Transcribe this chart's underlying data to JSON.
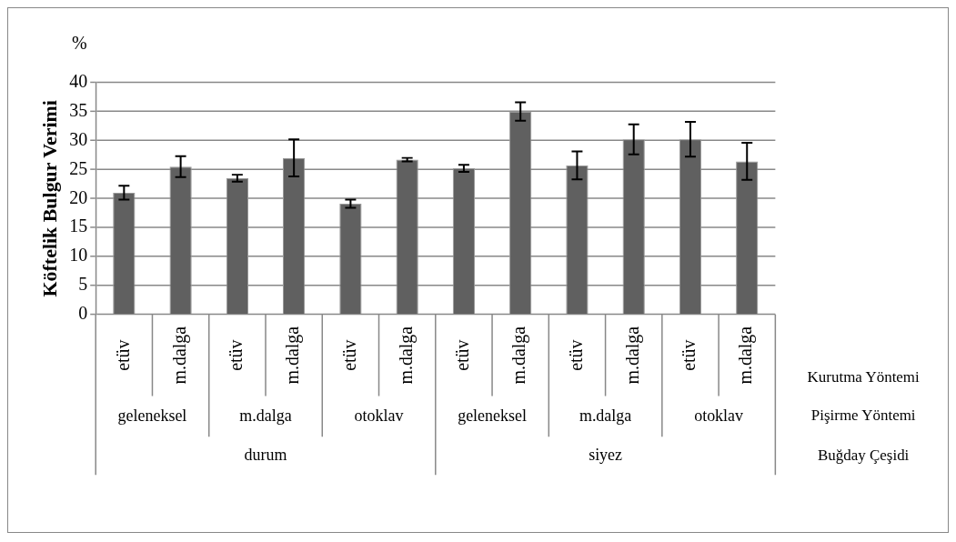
{
  "chart_data": {
    "type": "bar",
    "ylabel": "Köftelik Bulgur Verimi",
    "categories": [
      "etüv",
      "m.dalga",
      "etüv",
      "m.dalga",
      "etüv",
      "m.dalga",
      "etüv",
      "m.dalga",
      "etüv",
      "m.dalga",
      "etüv",
      "m.dalga"
    ],
    "values": [
      21.0,
      25.5,
      23.5,
      27.0,
      19.1,
      26.7,
      25.2,
      35.0,
      25.7,
      30.2,
      30.2,
      26.4
    ],
    "errors": [
      1.2,
      1.8,
      0.6,
      3.2,
      0.7,
      0.3,
      0.6,
      1.6,
      2.4,
      2.6,
      3.0,
      3.2
    ],
    "color": "#606060",
    "ylim": [
      0,
      40
    ],
    "yticks": [
      0,
      5,
      10,
      15,
      20,
      25,
      30,
      35,
      40
    ],
    "grid": "y",
    "legend": false,
    "annotations": [
      "%",
      "geleneksel",
      "m.dalga",
      "otoklav",
      "geleneksel",
      "m.dalga",
      "otoklav",
      "durum",
      "siyez",
      "Kurutma Yöntemi",
      "Pişirme Yöntemi",
      "Buğday Çeşidi"
    ]
  }
}
